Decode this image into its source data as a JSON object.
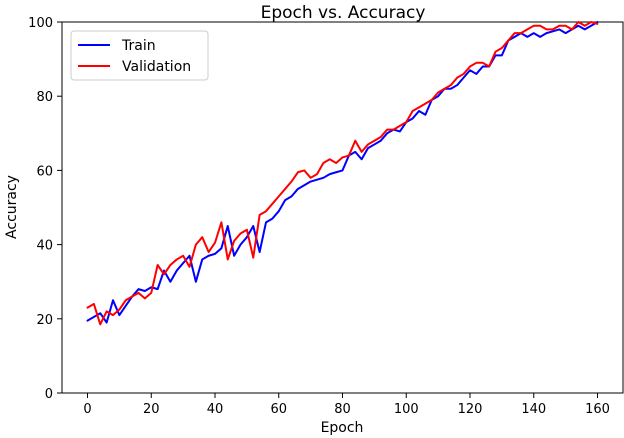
{
  "chart_data": {
    "type": "line",
    "title": "Epoch vs. Accuracy",
    "xlabel": "Epoch",
    "ylabel": "Accuracy",
    "xlim": [
      -8,
      168
    ],
    "ylim": [
      0,
      100
    ],
    "xticks": [
      0,
      20,
      40,
      60,
      80,
      100,
      120,
      140,
      160
    ],
    "yticks": [
      0,
      20,
      40,
      60,
      80,
      100
    ],
    "grid": false,
    "legend_position": "top-left",
    "x": [
      0,
      2,
      4,
      6,
      8,
      10,
      12,
      14,
      16,
      18,
      20,
      22,
      24,
      26,
      28,
      30,
      32,
      34,
      36,
      38,
      40,
      42,
      44,
      46,
      48,
      50,
      52,
      54,
      56,
      58,
      60,
      62,
      64,
      66,
      68,
      70,
      72,
      74,
      76,
      78,
      80,
      82,
      84,
      86,
      88,
      90,
      92,
      94,
      96,
      98,
      100,
      102,
      104,
      106,
      108,
      110,
      112,
      114,
      116,
      118,
      120,
      122,
      124,
      126,
      128,
      130,
      132,
      134,
      136,
      138,
      140,
      142,
      144,
      146,
      148,
      150,
      152,
      154,
      156,
      158,
      160
    ],
    "series": [
      {
        "name": "Train",
        "color": "#0000ff",
        "values": [
          19.5,
          20.5,
          21.5,
          19,
          25,
          21,
          23.5,
          26,
          28,
          27.5,
          28.5,
          28,
          33,
          30,
          33,
          35,
          37,
          30,
          36,
          37,
          37.5,
          39,
          45,
          37,
          40,
          42,
          45,
          38,
          46,
          47,
          49,
          52,
          53,
          55,
          56,
          57,
          57.5,
          58,
          59,
          59.5,
          60,
          64,
          65,
          63,
          66,
          67,
          68,
          70,
          71,
          70.5,
          73,
          74,
          76,
          75,
          79,
          80,
          82,
          82,
          83,
          85,
          87,
          86,
          88,
          88,
          91,
          91,
          95,
          96,
          97,
          96,
          97,
          96,
          97,
          97.5,
          98,
          97,
          98,
          99,
          98,
          99,
          100
        ]
      },
      {
        "name": "Validation",
        "color": "#ff0000",
        "values": [
          23,
          24,
          18.5,
          22,
          21,
          22.5,
          25,
          26,
          27,
          25.5,
          27,
          34.5,
          32,
          34.5,
          36,
          37,
          34,
          40,
          42,
          38,
          40.5,
          46,
          36,
          41,
          43,
          44,
          36.5,
          48,
          49,
          51,
          53,
          55,
          57,
          59.5,
          60,
          58,
          59,
          62,
          63,
          62,
          63.5,
          64,
          68,
          65,
          67,
          68,
          69,
          71,
          71,
          72,
          73,
          76,
          77,
          78,
          79,
          81,
          82,
          83,
          85,
          86,
          88,
          89,
          89,
          88,
          92,
          93,
          95,
          97,
          97,
          98,
          99,
          99,
          98,
          98,
          99,
          99,
          98,
          100,
          99,
          100,
          99.5
        ]
      }
    ]
  }
}
